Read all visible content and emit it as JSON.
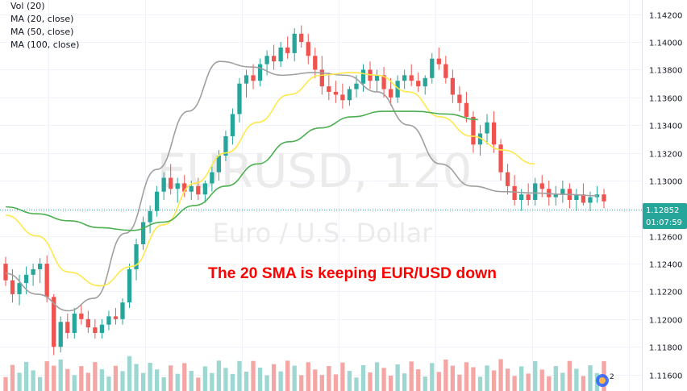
{
  "legend": {
    "items": [
      "Vol (20)",
      "MA (20, close)",
      "MA (50, close)",
      "MA (100, close)"
    ]
  },
  "chart_data": {
    "type": "candlestick",
    "watermark": {
      "symbol": "EURUSD, 120",
      "description": "Euro / U.S. Dollar"
    },
    "annotation": "The 20 SMA is keeping EUR/USD down",
    "y_ticks": [
      "1.14200",
      "1.14000",
      "1.13800",
      "1.13600",
      "1.13400",
      "1.13200",
      "1.13000",
      "1.12600",
      "1.12400",
      "1.12200",
      "1.12000",
      "1.11800",
      "1.11600"
    ],
    "ylim": [
      1.1158,
      1.1428
    ],
    "last_price": "1.12852",
    "countdown": "01:07:59",
    "colors": {
      "up": "#26a69a",
      "down": "#ef5350",
      "vol_up": "#9cd8d1",
      "vol_down": "#f4a6a4",
      "ma20": "#a0a0a0",
      "ma50": "#ffe84c",
      "ma100": "#4caf50",
      "price_label": "#26a69a",
      "annotation": "#ff0000",
      "watermark": "#ebebeb"
    },
    "candles": [
      [
        1.124,
        1.1245,
        1.1224,
        1.1228
      ],
      [
        1.1228,
        1.1236,
        1.1212,
        1.1218
      ],
      [
        1.1218,
        1.1232,
        1.121,
        1.1226
      ],
      [
        1.1226,
        1.1238,
        1.1218,
        1.1232
      ],
      [
        1.1232,
        1.124,
        1.1224,
        1.1236
      ],
      [
        1.1236,
        1.1244,
        1.1226,
        1.124
      ],
      [
        1.124,
        1.1246,
        1.1212,
        1.1216
      ],
      [
        1.1216,
        1.1218,
        1.1174,
        1.118
      ],
      [
        1.118,
        1.1202,
        1.1176,
        1.1198
      ],
      [
        1.1198,
        1.1204,
        1.1186,
        1.119
      ],
      [
        1.119,
        1.1208,
        1.1186,
        1.1204
      ],
      [
        1.1204,
        1.121,
        1.1196,
        1.12
      ],
      [
        1.12,
        1.1206,
        1.119,
        1.1194
      ],
      [
        1.1194,
        1.12,
        1.1186,
        1.119
      ],
      [
        1.119,
        1.12,
        1.1186,
        1.1196
      ],
      [
        1.1196,
        1.1206,
        1.1192,
        1.1202
      ],
      [
        1.1202,
        1.1208,
        1.1196,
        1.12
      ],
      [
        1.12,
        1.1215,
        1.1196,
        1.1212
      ],
      [
        1.1212,
        1.124,
        1.1208,
        1.1236
      ],
      [
        1.1236,
        1.1258,
        1.1228,
        1.1254
      ],
      [
        1.1254,
        1.1274,
        1.125,
        1.127
      ],
      [
        1.127,
        1.1282,
        1.1262,
        1.1278
      ],
      [
        1.1278,
        1.1296,
        1.1274,
        1.1292
      ],
      [
        1.1292,
        1.1306,
        1.1286,
        1.1302
      ],
      [
        1.1302,
        1.1312,
        1.129,
        1.1294
      ],
      [
        1.1294,
        1.1302,
        1.1284,
        1.1298
      ],
      [
        1.1298,
        1.1304,
        1.1288,
        1.1292
      ],
      [
        1.1292,
        1.13,
        1.1286,
        1.1296
      ],
      [
        1.1296,
        1.1302,
        1.1286,
        1.129
      ],
      [
        1.129,
        1.13,
        1.1284,
        1.1298
      ],
      [
        1.1298,
        1.131,
        1.1292,
        1.1306
      ],
      [
        1.1306,
        1.1322,
        1.13,
        1.1318
      ],
      [
        1.1318,
        1.1336,
        1.1314,
        1.1332
      ],
      [
        1.1332,
        1.1352,
        1.1326,
        1.1348
      ],
      [
        1.1348,
        1.1374,
        1.1342,
        1.137
      ],
      [
        1.137,
        1.138,
        1.136,
        1.1376
      ],
      [
        1.1376,
        1.1384,
        1.1366,
        1.1372
      ],
      [
        1.1372,
        1.1388,
        1.1368,
        1.1384
      ],
      [
        1.1384,
        1.1394,
        1.1376,
        1.139
      ],
      [
        1.139,
        1.1398,
        1.138,
        1.1386
      ],
      [
        1.1386,
        1.14,
        1.1382,
        1.1396
      ],
      [
        1.1396,
        1.1404,
        1.1388,
        1.1392
      ],
      [
        1.1392,
        1.141,
        1.1386,
        1.1406
      ],
      [
        1.1406,
        1.1412,
        1.1396,
        1.14
      ],
      [
        1.14,
        1.1406,
        1.1384,
        1.139
      ],
      [
        1.139,
        1.1396,
        1.1374,
        1.138
      ],
      [
        1.138,
        1.139,
        1.1362,
        1.1368
      ],
      [
        1.1368,
        1.1378,
        1.1358,
        1.1364
      ],
      [
        1.1364,
        1.1372,
        1.1356,
        1.1362
      ],
      [
        1.1362,
        1.137,
        1.1352,
        1.1358
      ],
      [
        1.1358,
        1.1368,
        1.1354,
        1.1366
      ],
      [
        1.1366,
        1.1376,
        1.136,
        1.137
      ],
      [
        1.137,
        1.1384,
        1.1364,
        1.138
      ],
      [
        1.138,
        1.1386,
        1.1366,
        1.1372
      ],
      [
        1.1372,
        1.138,
        1.1364,
        1.1376
      ],
      [
        1.1376,
        1.1382,
        1.136,
        1.1366
      ],
      [
        1.1366,
        1.1374,
        1.1354,
        1.136
      ],
      [
        1.136,
        1.1376,
        1.1356,
        1.1372
      ],
      [
        1.1372,
        1.138,
        1.1366,
        1.1376
      ],
      [
        1.1376,
        1.1384,
        1.1368,
        1.1372
      ],
      [
        1.1372,
        1.1378,
        1.1364,
        1.1368
      ],
      [
        1.1368,
        1.1376,
        1.1362,
        1.1374
      ],
      [
        1.1374,
        1.1392,
        1.137,
        1.1388
      ],
      [
        1.1388,
        1.1396,
        1.138,
        1.1384
      ],
      [
        1.1384,
        1.139,
        1.137,
        1.1374
      ],
      [
        1.1374,
        1.138,
        1.1356,
        1.1362
      ],
      [
        1.1362,
        1.1368,
        1.135,
        1.1356
      ],
      [
        1.1356,
        1.1364,
        1.1342,
        1.1346
      ],
      [
        1.1346,
        1.135,
        1.132,
        1.1326
      ],
      [
        1.1326,
        1.134,
        1.1318,
        1.1334
      ],
      [
        1.1334,
        1.1348,
        1.1326,
        1.1342
      ],
      [
        1.1342,
        1.135,
        1.132,
        1.1326
      ],
      [
        1.1326,
        1.133,
        1.13,
        1.1306
      ],
      [
        1.1306,
        1.1312,
        1.129,
        1.1296
      ],
      [
        1.1296,
        1.1304,
        1.1282,
        1.1286
      ],
      [
        1.1286,
        1.1294,
        1.1278,
        1.129
      ],
      [
        1.129,
        1.1298,
        1.1282,
        1.1286
      ],
      [
        1.1286,
        1.1302,
        1.1282,
        1.1298
      ],
      [
        1.1298,
        1.1304,
        1.1288,
        1.1294
      ],
      [
        1.1294,
        1.13,
        1.1282,
        1.1288
      ],
      [
        1.1288,
        1.1296,
        1.1282,
        1.129
      ],
      [
        1.129,
        1.13,
        1.1284,
        1.1294
      ],
      [
        1.1294,
        1.1298,
        1.128,
        1.1286
      ],
      [
        1.1286,
        1.1294,
        1.1278,
        1.129
      ],
      [
        1.129,
        1.1298,
        1.1282,
        1.1284
      ],
      [
        1.1284,
        1.1292,
        1.1278,
        1.1288
      ],
      [
        1.1288,
        1.1296,
        1.1284,
        1.129
      ],
      [
        1.129,
        1.1294,
        1.128,
        1.1285
      ]
    ],
    "ma20": [
      [
        0,
        1.1233
      ],
      [
        10,
        1.1218
      ],
      [
        20,
        1.1206
      ],
      [
        28,
        1.1215
      ],
      [
        38,
        1.1262
      ],
      [
        48,
        1.1308
      ],
      [
        58,
        1.135
      ],
      [
        68,
        1.1386
      ],
      [
        78,
        1.1382
      ],
      [
        88,
        1.1376
      ],
      [
        98,
        1.1378
      ],
      [
        108,
        1.1376
      ],
      [
        118,
        1.1364
      ],
      [
        128,
        1.134
      ],
      [
        138,
        1.1312
      ],
      [
        148,
        1.1296
      ],
      [
        158,
        1.1292
      ],
      [
        168,
        1.1291
      ],
      [
        178,
        1.129
      ],
      [
        188,
        1.1289
      ]
    ],
    "ma50": [
      [
        0,
        1.1275
      ],
      [
        10,
        1.126
      ],
      [
        20,
        1.1234
      ],
      [
        30,
        1.1224
      ],
      [
        40,
        1.1238
      ],
      [
        50,
        1.1268
      ],
      [
        60,
        1.1298
      ],
      [
        70,
        1.132
      ],
      [
        80,
        1.1342
      ],
      [
        90,
        1.1362
      ],
      [
        100,
        1.1376
      ],
      [
        110,
        1.1378
      ],
      [
        118,
        1.1376
      ],
      [
        128,
        1.1364
      ],
      [
        138,
        1.1346
      ],
      [
        148,
        1.1332
      ],
      [
        158,
        1.1322
      ],
      [
        168,
        1.1312
      ]
    ],
    "ma100": [
      [
        0,
        1.1281
      ],
      [
        10,
        1.1276
      ],
      [
        20,
        1.1271
      ],
      [
        30,
        1.1266
      ],
      [
        40,
        1.1264
      ],
      [
        50,
        1.127
      ],
      [
        60,
        1.1282
      ],
      [
        70,
        1.1296
      ],
      [
        80,
        1.1312
      ],
      [
        90,
        1.1328
      ],
      [
        100,
        1.1338
      ],
      [
        110,
        1.1346
      ],
      [
        120,
        1.135
      ],
      [
        130,
        1.135
      ],
      [
        140,
        1.1348
      ],
      [
        150,
        1.1344
      ]
    ]
  }
}
